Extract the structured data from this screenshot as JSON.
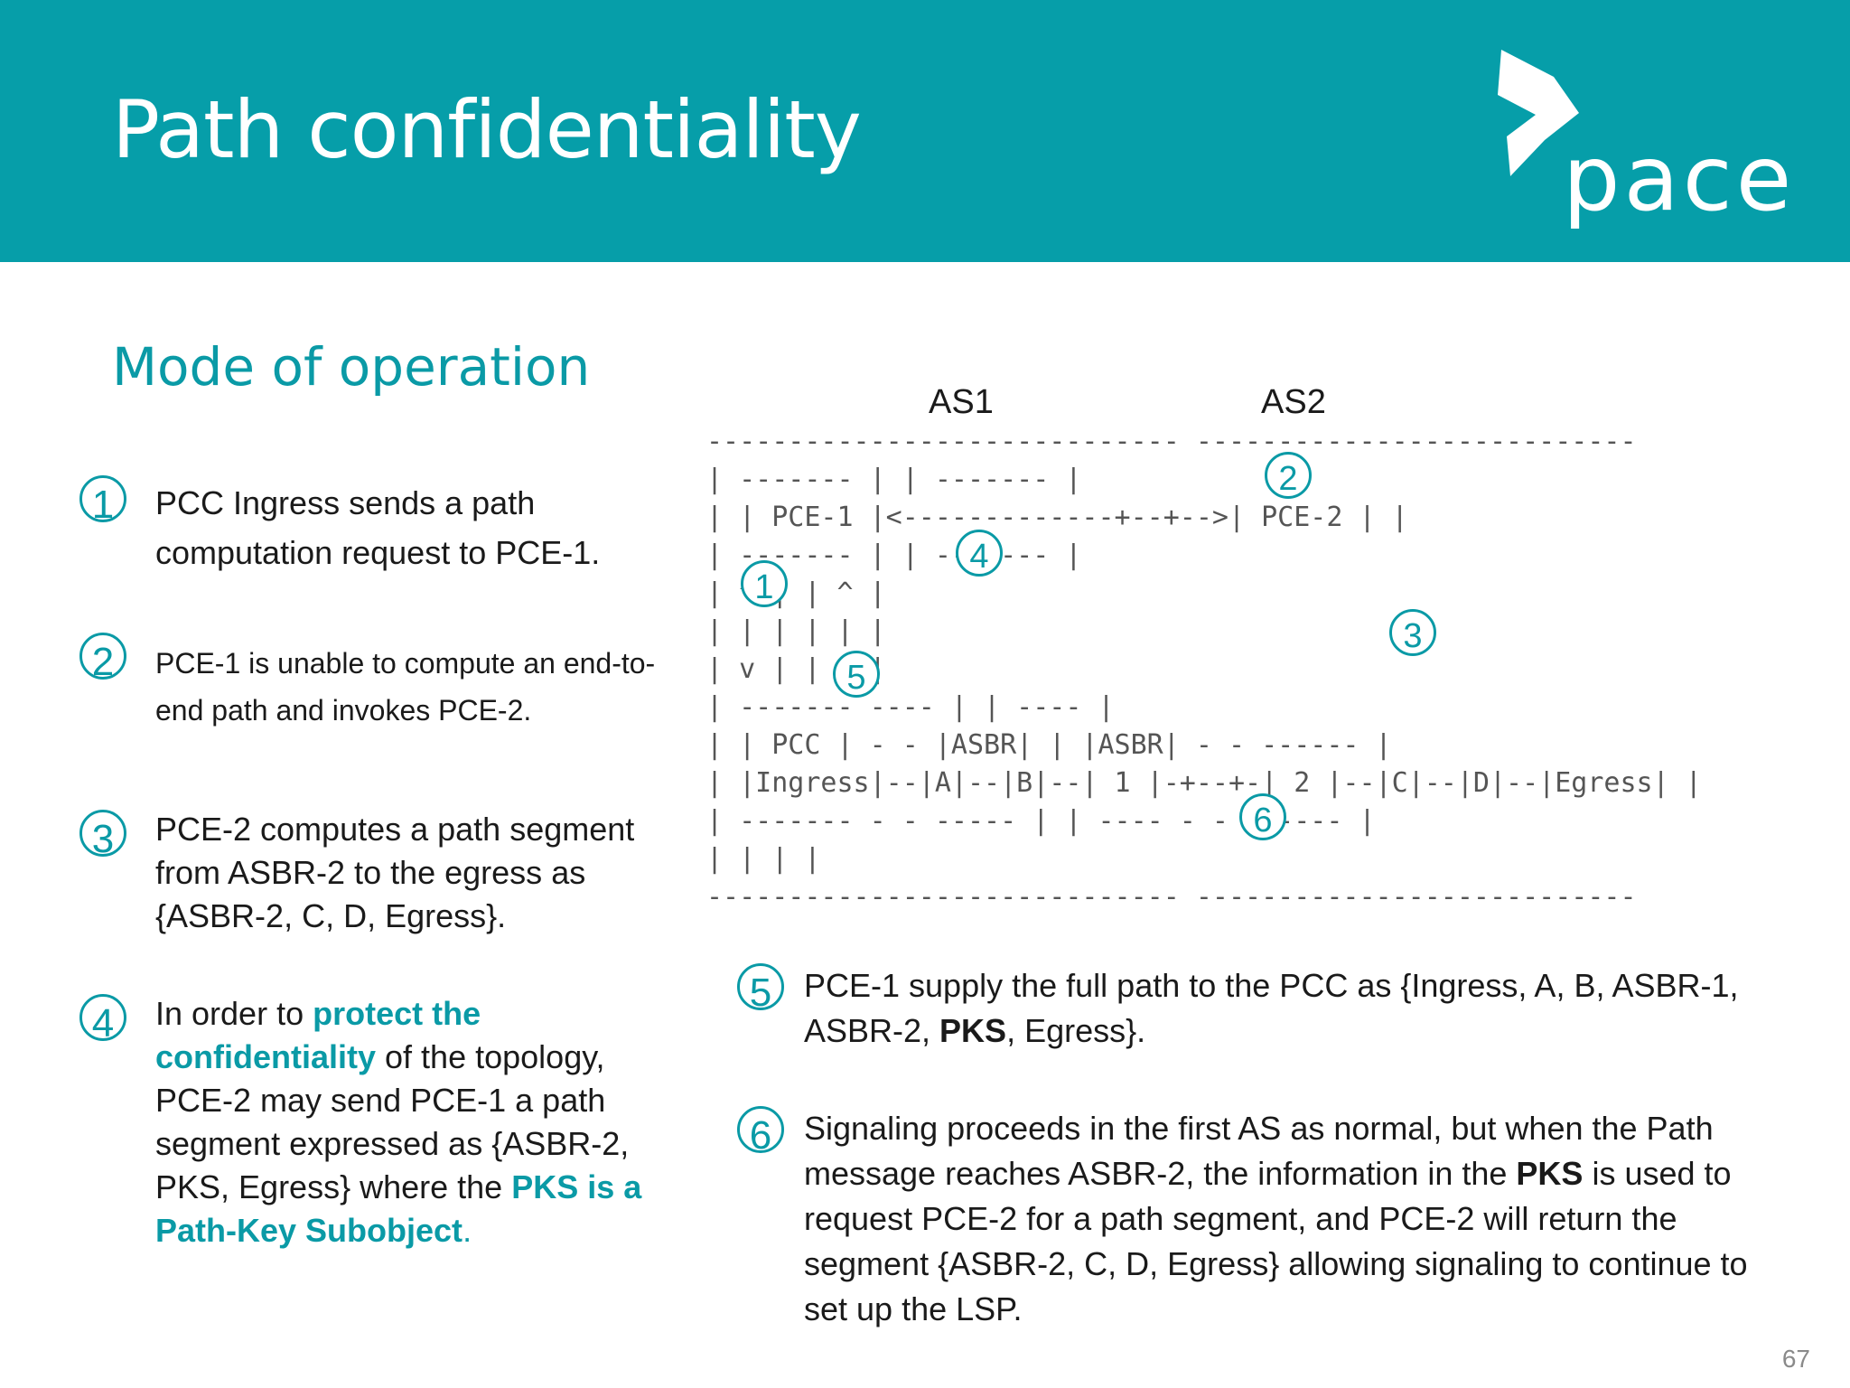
{
  "header": {
    "title": "Path confidentiality",
    "logo_text": "pace"
  },
  "subtitle": "Mode of operation",
  "left_steps": [
    {
      "num": "1",
      "parts": [
        {
          "t": "PCC Ingress sends a path computation request to PCE-1.",
          "s": ""
        }
      ]
    },
    {
      "num": "2",
      "parts": [
        {
          "t": "PCE-1 is unable to compute an end-to-end path and invokes PCE-2.",
          "s": ""
        }
      ]
    },
    {
      "num": "3",
      "parts": [
        {
          "t": "PCE-2 computes a path segment from ASBR-2 to the egress as {ASBR-2, C, D, Egress}.",
          "s": ""
        }
      ]
    },
    {
      "num": "4",
      "parts": [
        {
          "t": "In order to ",
          "s": ""
        },
        {
          "t": "protect the confidentiality",
          "s": "hl"
        },
        {
          "t": " of the topology, PCE-2 may send PCE-1 a path segment expressed as {ASBR-2, PKS, Egress} where the ",
          "s": ""
        },
        {
          "t": "PKS is a Path-Key Subobject",
          "s": "hl"
        },
        {
          "t": ".",
          "s": "dot"
        }
      ]
    }
  ],
  "right_steps": [
    {
      "num": "5",
      "parts": [
        {
          "t": "PCE-1 supply the full path to the PCC as {Ingress, A, B, ASBR-1, ASBR-2, ",
          "s": ""
        },
        {
          "t": "PKS",
          "s": "b"
        },
        {
          "t": ", Egress}.",
          "s": ""
        }
      ]
    },
    {
      "num": "6",
      "parts": [
        {
          "t": "Signaling proceeds in the first AS as normal, but when the Path message reaches ASBR-2, the information in the ",
          "s": ""
        },
        {
          "t": "PKS",
          "s": "b"
        },
        {
          "t": " is used to request PCE-2 for a path segment, and PCE-2 will return the segment {ASBR-2, C, D, Egress} allowing signaling to continue to set up the LSP.",
          "s": ""
        }
      ]
    }
  ],
  "diagram": {
    "as1": "AS1",
    "as2": "AS2",
    "lines": [
      "-----------------------------   ---------------------------",
      "|     -------               | |     -------                |",
      "|    | PCE-1 |<-------------+--+-->| PCE-2 |               |",
      "|     -------               | |     -------                |",
      "|       ^                   | |       ^                    |",
      "|       |                   | |       |                    |",
      "|       v                   | |       v                    |",
      "|   -------             ----  | |   ----                   |",
      "|  |  PCC   |  -    -  |ASBR|  | |ASBR|   -    -   ------  |",
      "|  |Ingress|--|A|--|B|--|  1 |-+--+-|  2 |--|C|--|D|--|Egress| |",
      "|   -------    -    -   -----  | |   ----   -    -   ------  |",
      "|                           | |                            |",
      "-----------------------------   ---------------------------"
    ],
    "markers": [
      "1",
      "2",
      "3",
      "4",
      "5",
      "6"
    ]
  },
  "page_number": "67"
}
